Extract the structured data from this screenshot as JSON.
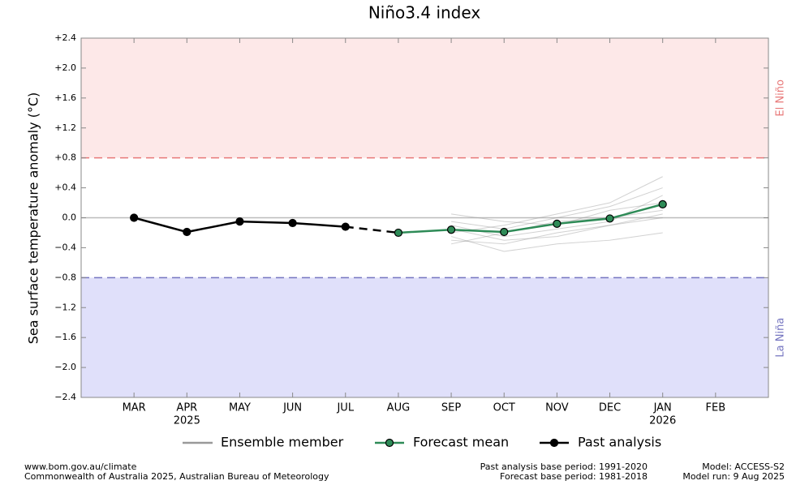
{
  "chart_data": {
    "type": "line",
    "title": "Niño3.4 index",
    "ylabel": "Sea surface temperature anomaly (°C)",
    "categories": [
      "MAR",
      "APR",
      "MAY",
      "JUN",
      "JUL",
      "AUG",
      "SEP",
      "OCT",
      "NOV",
      "DEC",
      "JAN",
      "FEB"
    ],
    "category_sublabels": [
      null,
      "2025",
      null,
      null,
      null,
      null,
      null,
      null,
      null,
      null,
      "2026",
      null
    ],
    "ylim": [
      -2.4,
      2.4
    ],
    "yticks": [
      {
        "value": 2.4,
        "label": "+2.4"
      },
      {
        "value": 2.0,
        "label": "+2.0"
      },
      {
        "value": 1.6,
        "label": "+1.6"
      },
      {
        "value": 1.2,
        "label": "+1.2"
      },
      {
        "value": 0.8,
        "label": "+0.8"
      },
      {
        "value": 0.4,
        "label": "+0.4"
      },
      {
        "value": 0.0,
        "label": "0.0"
      },
      {
        "value": -0.4,
        "label": "−0.4"
      },
      {
        "value": -0.8,
        "label": "−0.8"
      },
      {
        "value": -1.2,
        "label": "−1.2"
      },
      {
        "value": -1.6,
        "label": "−1.6"
      },
      {
        "value": -2.0,
        "label": "−2.0"
      },
      {
        "value": -2.4,
        "label": "−2.4"
      }
    ],
    "thresholds": [
      {
        "value": 0.8,
        "label": "El Niño",
        "color": "#e87878",
        "fill": "#fde8e8"
      },
      {
        "value": -0.8,
        "label": "La Niña",
        "color": "#7474c0",
        "fill": "#e0e0fa"
      }
    ],
    "ensemble": {
      "name": "Ensemble member",
      "color": "#999999",
      "members": [
        [
          null,
          null,
          null,
          null,
          null,
          null,
          -0.05,
          -0.15,
          0.0,
          0.15,
          0.4,
          null
        ],
        [
          null,
          null,
          null,
          null,
          null,
          null,
          -0.3,
          -0.35,
          -0.2,
          -0.1,
          0.05,
          null
        ],
        [
          null,
          null,
          null,
          null,
          null,
          null,
          -0.1,
          -0.25,
          -0.15,
          -0.05,
          0.3,
          null
        ],
        [
          null,
          null,
          null,
          null,
          null,
          null,
          -0.2,
          -0.1,
          0.05,
          0.2,
          0.55,
          null
        ],
        [
          null,
          null,
          null,
          null,
          null,
          null,
          -0.25,
          -0.45,
          -0.35,
          -0.3,
          -0.2,
          null
        ],
        [
          null,
          null,
          null,
          null,
          null,
          null,
          0.05,
          -0.05,
          -0.1,
          0.1,
          0.2,
          null
        ],
        [
          null,
          null,
          null,
          null,
          null,
          null,
          -0.15,
          -0.3,
          -0.25,
          -0.1,
          0.0,
          null
        ],
        [
          null,
          null,
          null,
          null,
          null,
          null,
          -0.35,
          -0.2,
          -0.05,
          0.0,
          0.1,
          null
        ]
      ]
    },
    "series": [
      {
        "name": "Forecast mean",
        "color": "#2e8b57",
        "values": [
          null,
          null,
          null,
          null,
          null,
          -0.2,
          -0.16,
          -0.19,
          -0.08,
          -0.01,
          0.18,
          null
        ]
      },
      {
        "name": "Past analysis",
        "color": "#000000",
        "values": [
          0.0,
          -0.19,
          -0.05,
          -0.07,
          -0.12,
          null,
          null,
          null,
          null,
          null,
          null,
          null
        ]
      }
    ]
  },
  "footer": {
    "left": [
      "www.bom.gov.au/climate",
      "Commonwealth of Australia 2025, Australian Bureau of Meteorology"
    ],
    "middle": [
      "Past analysis base period: 1991-2020",
      "Forecast base period: 1981-2018"
    ],
    "right": [
      "Model: ACCESS-S2",
      "Model run: 9 Aug 2025"
    ]
  }
}
